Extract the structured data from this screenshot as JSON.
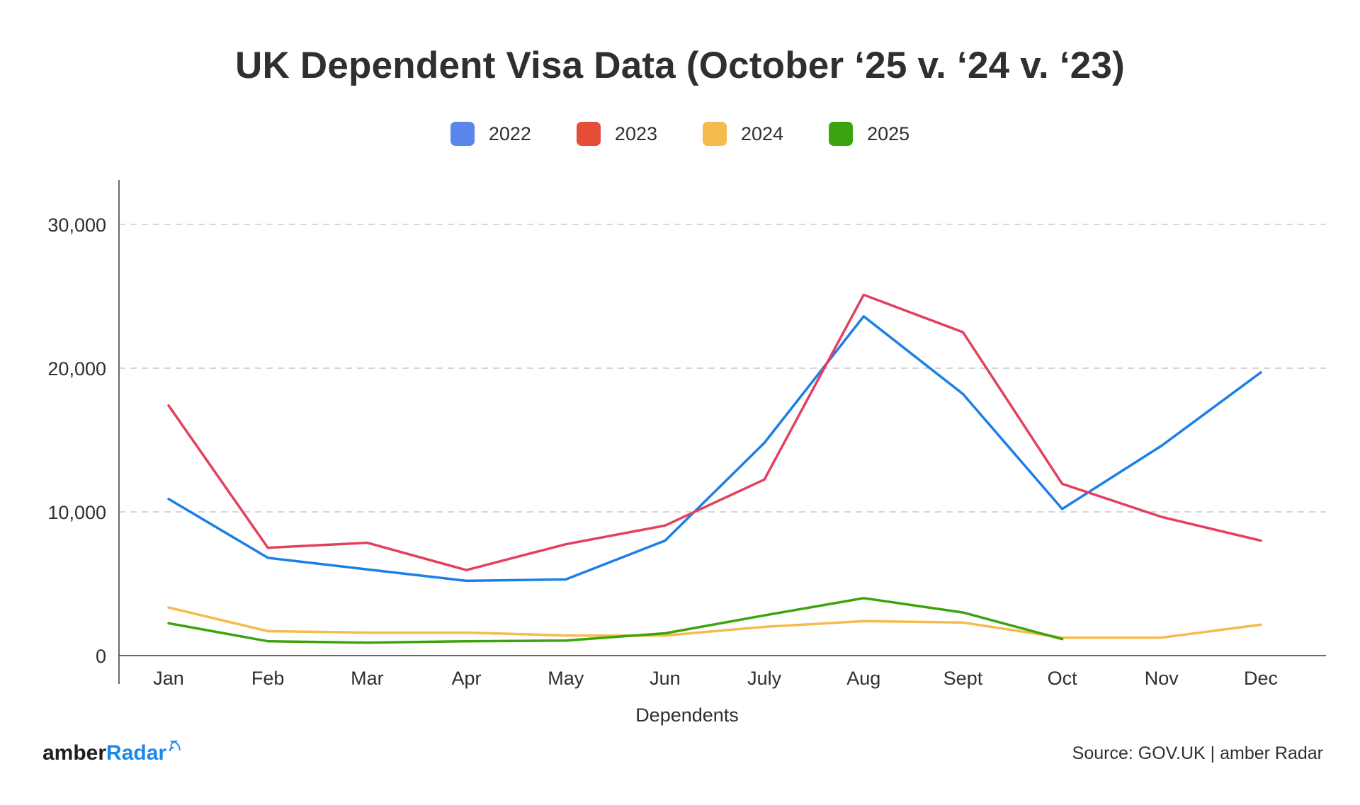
{
  "chart_data": {
    "type": "line",
    "title": "UK Dependent Visa Data (October ‘25 v. ‘24 v. ‘23)",
    "xlabel": "Dependents",
    "ylabel": "",
    "categories": [
      "Jan",
      "Feb",
      "Mar",
      "Apr",
      "May",
      "Jun",
      "July",
      "Aug",
      "Sept",
      "Oct",
      "Nov",
      "Dec"
    ],
    "ylim": [
      0,
      33000
    ],
    "yticks": [
      0,
      10000,
      20000,
      30000
    ],
    "ytick_labels": [
      "0",
      "10,000",
      "20,000",
      "30,000"
    ],
    "grid": true,
    "legend_position": "top-center",
    "legend": [
      {
        "name": "2022",
        "color": "#5b87ea"
      },
      {
        "name": "2023",
        "color": "#e44d37"
      },
      {
        "name": "2024",
        "color": "#f5bb4c"
      },
      {
        "name": "2025",
        "color": "#3aa30e"
      }
    ],
    "series": [
      {
        "name": "2022",
        "color": "#1a7fe8",
        "values": [
          10900,
          6800,
          6000,
          5200,
          5300,
          8000,
          14800,
          23600,
          18200,
          10200,
          14600,
          19700
        ]
      },
      {
        "name": "2023",
        "color": "#e3405f",
        "values": [
          17400,
          7500,
          7850,
          5950,
          7750,
          9050,
          12250,
          25100,
          22500,
          11950,
          9650,
          8000
        ]
      },
      {
        "name": "2024",
        "color": "#f5bb4c",
        "values": [
          3350,
          1700,
          1600,
          1600,
          1400,
          1400,
          2000,
          2400,
          2300,
          1250,
          1250,
          2150
        ]
      },
      {
        "name": "2025",
        "color": "#3aa30e",
        "values": [
          2250,
          1000,
          900,
          1000,
          1050,
          1550,
          2800,
          4000,
          3000,
          1150,
          null,
          null
        ]
      }
    ]
  },
  "brand": {
    "text_main": "amber",
    "text_accent": "Radar",
    "icon": "radar-waves-icon"
  },
  "source": "Source: GOV.UK | amber Radar"
}
